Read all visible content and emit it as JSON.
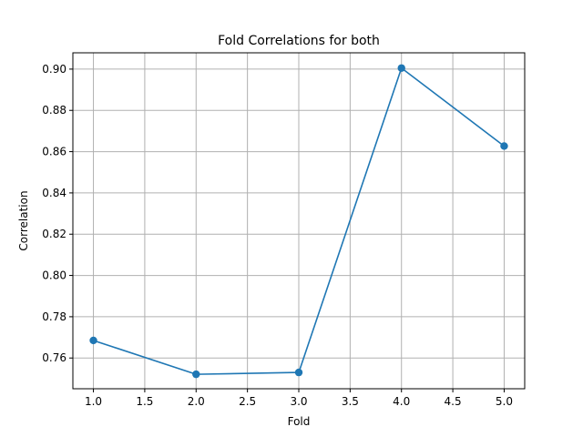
{
  "chart_data": {
    "type": "line",
    "title": "Fold Correlations for both",
    "xlabel": "Fold",
    "ylabel": "Correlation",
    "x": [
      1,
      2,
      3,
      4,
      5
    ],
    "series": [
      {
        "values": [
          0.7685,
          0.7521,
          0.753,
          0.9005,
          0.8627
        ],
        "color": "#1f77b4",
        "marker": "circle"
      }
    ],
    "xlim": [
      0.8,
      5.2
    ],
    "ylim": [
      0.7451,
      0.9079
    ],
    "xticks": [
      1.0,
      1.5,
      2.0,
      2.5,
      3.0,
      3.5,
      4.0,
      4.5,
      5.0
    ],
    "xtick_labels": [
      "1.0",
      "1.5",
      "2.0",
      "2.5",
      "3.0",
      "3.5",
      "4.0",
      "4.5",
      "5.0"
    ],
    "yticks": [
      0.76,
      0.78,
      0.8,
      0.82,
      0.84,
      0.86,
      0.88,
      0.9
    ],
    "ytick_labels": [
      "0.76",
      "0.78",
      "0.80",
      "0.82",
      "0.84",
      "0.86",
      "0.88",
      "0.90"
    ],
    "grid": true,
    "grid_color": "#b0b0b0"
  }
}
